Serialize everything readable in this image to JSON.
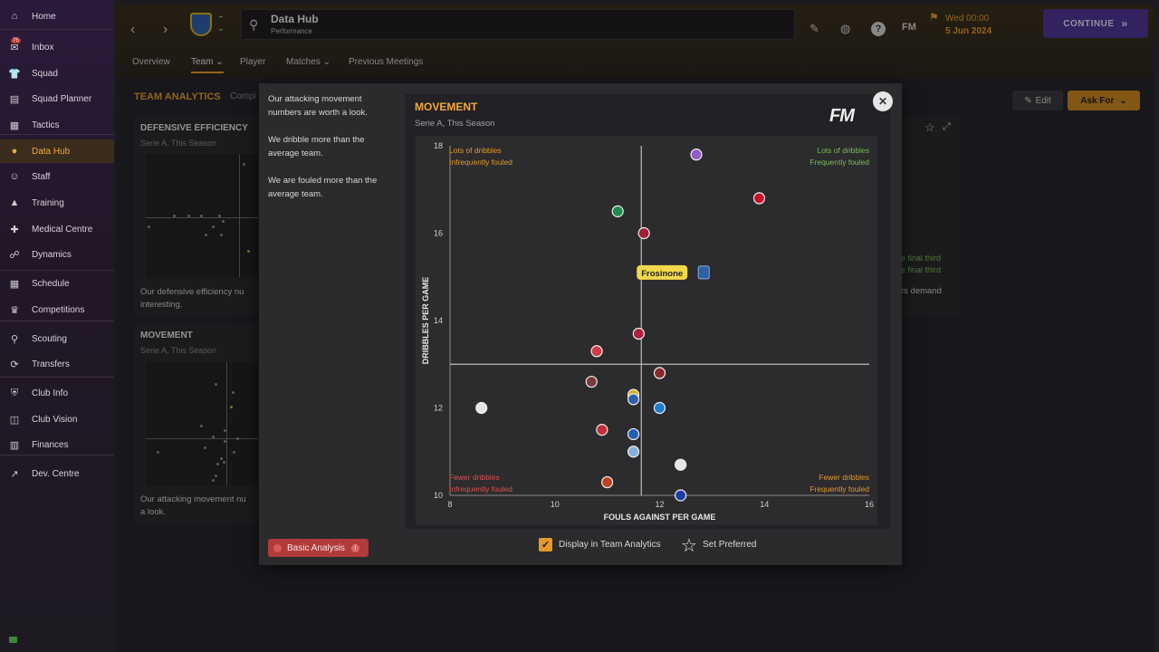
{
  "sidebar": {
    "items": [
      {
        "label": "Home",
        "icon": "home-icon"
      },
      {
        "label": "Inbox",
        "icon": "inbox-icon",
        "badge": "75"
      },
      {
        "label": "Squad",
        "icon": "shirt-icon"
      },
      {
        "label": "Squad Planner",
        "icon": "planner-icon"
      },
      {
        "label": "Tactics",
        "icon": "tactics-icon"
      },
      {
        "label": "Data Hub",
        "icon": "data-hub-icon"
      },
      {
        "label": "Staff",
        "icon": "staff-icon"
      },
      {
        "label": "Training",
        "icon": "training-icon"
      },
      {
        "label": "Medical Centre",
        "icon": "medical-icon"
      },
      {
        "label": "Dynamics",
        "icon": "dynamics-icon"
      },
      {
        "label": "Schedule",
        "icon": "calendar-icon"
      },
      {
        "label": "Competitions",
        "icon": "trophy-icon"
      },
      {
        "label": "Scouting",
        "icon": "scouting-icon"
      },
      {
        "label": "Transfers",
        "icon": "transfers-icon"
      },
      {
        "label": "Club Info",
        "icon": "shield-icon"
      },
      {
        "label": "Club Vision",
        "icon": "vision-icon"
      },
      {
        "label": "Finances",
        "icon": "finances-icon"
      },
      {
        "label": "Dev. Centre",
        "icon": "dev-centre-icon"
      }
    ]
  },
  "header": {
    "title": "Data Hub",
    "subtitle": "Performance",
    "date_line1": "Wed 00:00",
    "date_line2": "5 Jun 2024",
    "continue_label": "CONTINUE",
    "fm_label": "FM",
    "help_label": "?"
  },
  "tabs": [
    {
      "label": "Overview"
    },
    {
      "label": "Team ⌄"
    },
    {
      "label": "Player"
    },
    {
      "label": "Matches ⌄"
    },
    {
      "label": "Previous Meetings"
    }
  ],
  "section": {
    "title": "TEAM ANALYTICS",
    "subtitle": "Compi"
  },
  "bg_cards": {
    "defensive_title": "DEFENSIVE EFFICIENCY",
    "defensive_sub": "Serie A, This Season",
    "defensive_text_1": "Our defensive efficiency nu",
    "defensive_text_2": "interesting.",
    "movement_title": "MOVEMENT",
    "movement_sub": "Serie A, This Season",
    "movement_text_1": "Our attacking movement nu",
    "movement_text_2": "a look.",
    "right_text_1": "e final third",
    "right_text_2": "e final third",
    "right_text_3": "rs demand"
  },
  "actions": {
    "edit_label": "Edit",
    "ask_for_label": "Ask For"
  },
  "modal": {
    "insights": [
      "Our attacking movement numbers are worth a look.",
      "We dribble more than the average team.",
      "We are fouled more than the average team."
    ],
    "basic_analysis_label": "Basic Analysis",
    "display_label": "Display in Team Analytics",
    "preferred_label": "Set Preferred",
    "fm_logo": "FM"
  },
  "chart_data": {
    "type": "scatter",
    "title": "MOVEMENT",
    "subtitle": "Serie A, This Season",
    "xlabel": "FOULS AGAINST PER GAME",
    "ylabel": "DRIBBLES PER GAME",
    "xlim": [
      8,
      16
    ],
    "ylim": [
      10,
      18
    ],
    "xticks": [
      8,
      10,
      12,
      14,
      16
    ],
    "yticks": [
      10,
      12,
      14,
      16,
      18
    ],
    "x_average": 11.65,
    "y_average": 13.0,
    "quadrant_labels": {
      "top_left": [
        "Lots of dribbles",
        "Infrequently fouled"
      ],
      "top_right": [
        "Lots of dribbles",
        "Frequently fouled"
      ],
      "bottom_left": [
        "Fewer dribbles",
        "Infrequently fouled"
      ],
      "bottom_right": [
        "Fewer dribbles",
        "Frequently fouled"
      ]
    },
    "colors": {
      "top_left": "#e39a2a",
      "top_right": "#7dbb5a",
      "bottom_left": "#d9534f",
      "bottom_right": "#e39a2a"
    },
    "highlight": {
      "label": "Frosinone",
      "x": 12.6,
      "y": 15.1
    },
    "points": [
      {
        "x": 12.7,
        "y": 17.8,
        "color": "#8e5cc2"
      },
      {
        "x": 13.9,
        "y": 16.8,
        "color": "#c8102e"
      },
      {
        "x": 11.2,
        "y": 16.5,
        "color": "#1f8a4c"
      },
      {
        "x": 11.7,
        "y": 16.0,
        "color": "#a02030"
      },
      {
        "x": 11.6,
        "y": 13.7,
        "color": "#b0203a"
      },
      {
        "x": 10.8,
        "y": 13.3,
        "color": "#d03a4a"
      },
      {
        "x": 12.0,
        "y": 12.8,
        "color": "#8a2a2a"
      },
      {
        "x": 10.7,
        "y": 12.6,
        "color": "#7a3a3a"
      },
      {
        "x": 11.5,
        "y": 12.3,
        "color": "#d4b020"
      },
      {
        "x": 11.5,
        "y": 12.2,
        "color": "#2f5fa8"
      },
      {
        "x": 12.0,
        "y": 12.0,
        "color": "#1f7ad0"
      },
      {
        "x": 8.6,
        "y": 12.0,
        "color": "#e6e6e6"
      },
      {
        "x": 10.9,
        "y": 11.5,
        "color": "#c0303a"
      },
      {
        "x": 11.5,
        "y": 11.4,
        "color": "#1f5fb0"
      },
      {
        "x": 11.5,
        "y": 11.0,
        "color": "#8ab0d8"
      },
      {
        "x": 12.4,
        "y": 10.7,
        "color": "#e6e6e6"
      },
      {
        "x": 11.0,
        "y": 10.3,
        "color": "#c04020"
      },
      {
        "x": 12.4,
        "y": 10.0,
        "color": "#1f3fa0"
      }
    ]
  }
}
